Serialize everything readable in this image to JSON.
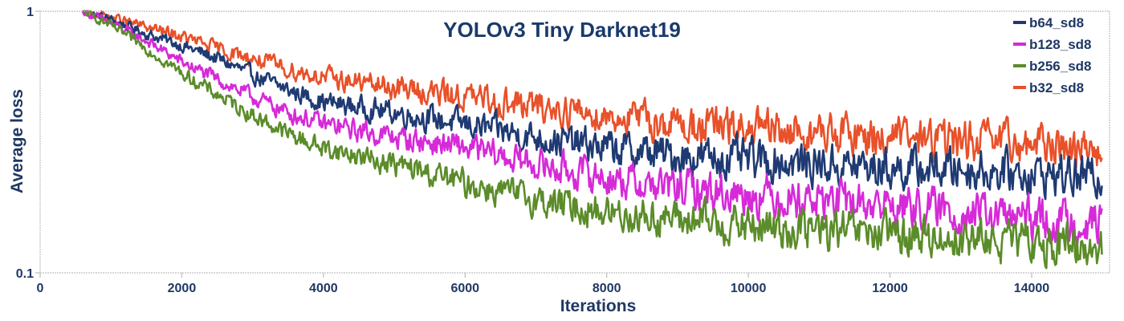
{
  "chart_data": {
    "type": "line",
    "title": "YOLOv3 Tiny Darknet19",
    "xlabel": "Iterations",
    "ylabel": "Average loss",
    "xlim": [
      0,
      15100
    ],
    "ylim": [
      0.1,
      1
    ],
    "yscale": "log",
    "grid": false,
    "legend_position": "top-right",
    "x_ticks": [
      0,
      2000,
      4000,
      6000,
      8000,
      10000,
      12000,
      14000
    ],
    "x_tick_labels": [
      "0",
      "2000",
      "4000",
      "6000",
      "8000",
      "10000",
      "12000",
      "14000"
    ],
    "y_ticks": [
      0.1,
      1
    ],
    "y_tick_labels": [
      "0.1",
      "1"
    ],
    "colors": {
      "axis": "#b0b0b0",
      "text": "#1f3864",
      "title": "#1a3a6b"
    },
    "series": [
      {
        "name": "b64_sd8",
        "color": "#1f3a73",
        "x": [
          600,
          1000,
          1500,
          2000,
          2500,
          3000,
          3500,
          4000,
          5000,
          6000,
          7000,
          8000,
          9000,
          10000,
          11000,
          12000,
          13000,
          14000,
          15000
        ],
        "values": [
          1.0,
          0.93,
          0.82,
          0.74,
          0.66,
          0.57,
          0.5,
          0.45,
          0.41,
          0.37,
          0.33,
          0.3,
          0.28,
          0.27,
          0.26,
          0.25,
          0.25,
          0.24,
          0.23
        ]
      },
      {
        "name": "b128_sd8",
        "color": "#d62ad8",
        "x": [
          600,
          1000,
          1500,
          2000,
          2500,
          3000,
          3500,
          4000,
          5000,
          6000,
          7000,
          8000,
          9000,
          10000,
          11000,
          12000,
          13000,
          14000,
          15000
        ],
        "values": [
          1.0,
          0.9,
          0.77,
          0.64,
          0.55,
          0.47,
          0.41,
          0.37,
          0.33,
          0.3,
          0.26,
          0.23,
          0.21,
          0.2,
          0.19,
          0.18,
          0.17,
          0.16,
          0.155
        ]
      },
      {
        "name": "b256_sd8",
        "color": "#5b8c2a",
        "x": [
          600,
          1000,
          1500,
          2000,
          2500,
          3000,
          3500,
          4000,
          5000,
          6000,
          7000,
          8000,
          9000,
          10000,
          11000,
          12000,
          13000,
          14000,
          15000
        ],
        "values": [
          1.0,
          0.88,
          0.72,
          0.58,
          0.48,
          0.4,
          0.34,
          0.3,
          0.26,
          0.22,
          0.19,
          0.17,
          0.16,
          0.15,
          0.145,
          0.14,
          0.135,
          0.13,
          0.125
        ]
      },
      {
        "name": "b32_sd8",
        "color": "#e8512a",
        "x": [
          600,
          1000,
          1500,
          2000,
          2500,
          3000,
          3500,
          4000,
          5000,
          6000,
          7000,
          8000,
          9000,
          10000,
          11000,
          12000,
          13000,
          14000,
          15000
        ],
        "values": [
          1.0,
          0.95,
          0.87,
          0.8,
          0.72,
          0.66,
          0.6,
          0.56,
          0.51,
          0.47,
          0.43,
          0.4,
          0.37,
          0.35,
          0.34,
          0.33,
          0.32,
          0.31,
          0.3
        ]
      }
    ]
  }
}
